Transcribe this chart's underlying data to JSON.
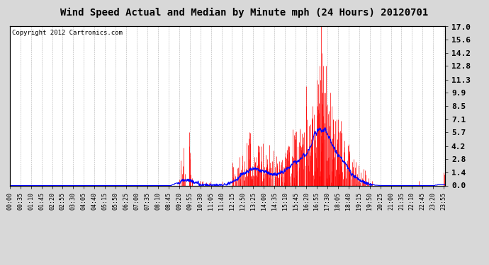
{
  "title": "Wind Speed Actual and Median by Minute mph (24 Hours) 20120701",
  "copyright": "Copyright 2012 Cartronics.com",
  "yticks": [
    0.0,
    1.4,
    2.8,
    4.2,
    5.7,
    7.1,
    8.5,
    9.9,
    11.3,
    12.8,
    14.2,
    15.6,
    17.0
  ],
  "ylim": [
    0.0,
    17.0
  ],
  "background_color": "#d8d8d8",
  "plot_bg_color": "#ffffff",
  "actual_color": "#ff0000",
  "median_color": "#0000ff",
  "grid_color": "#b0b0b0",
  "total_minutes": 1440,
  "xtick_step": 35,
  "title_fontsize": 10,
  "copyright_fontsize": 6.5,
  "tick_fontsize": 6,
  "ytick_fontsize": 8
}
